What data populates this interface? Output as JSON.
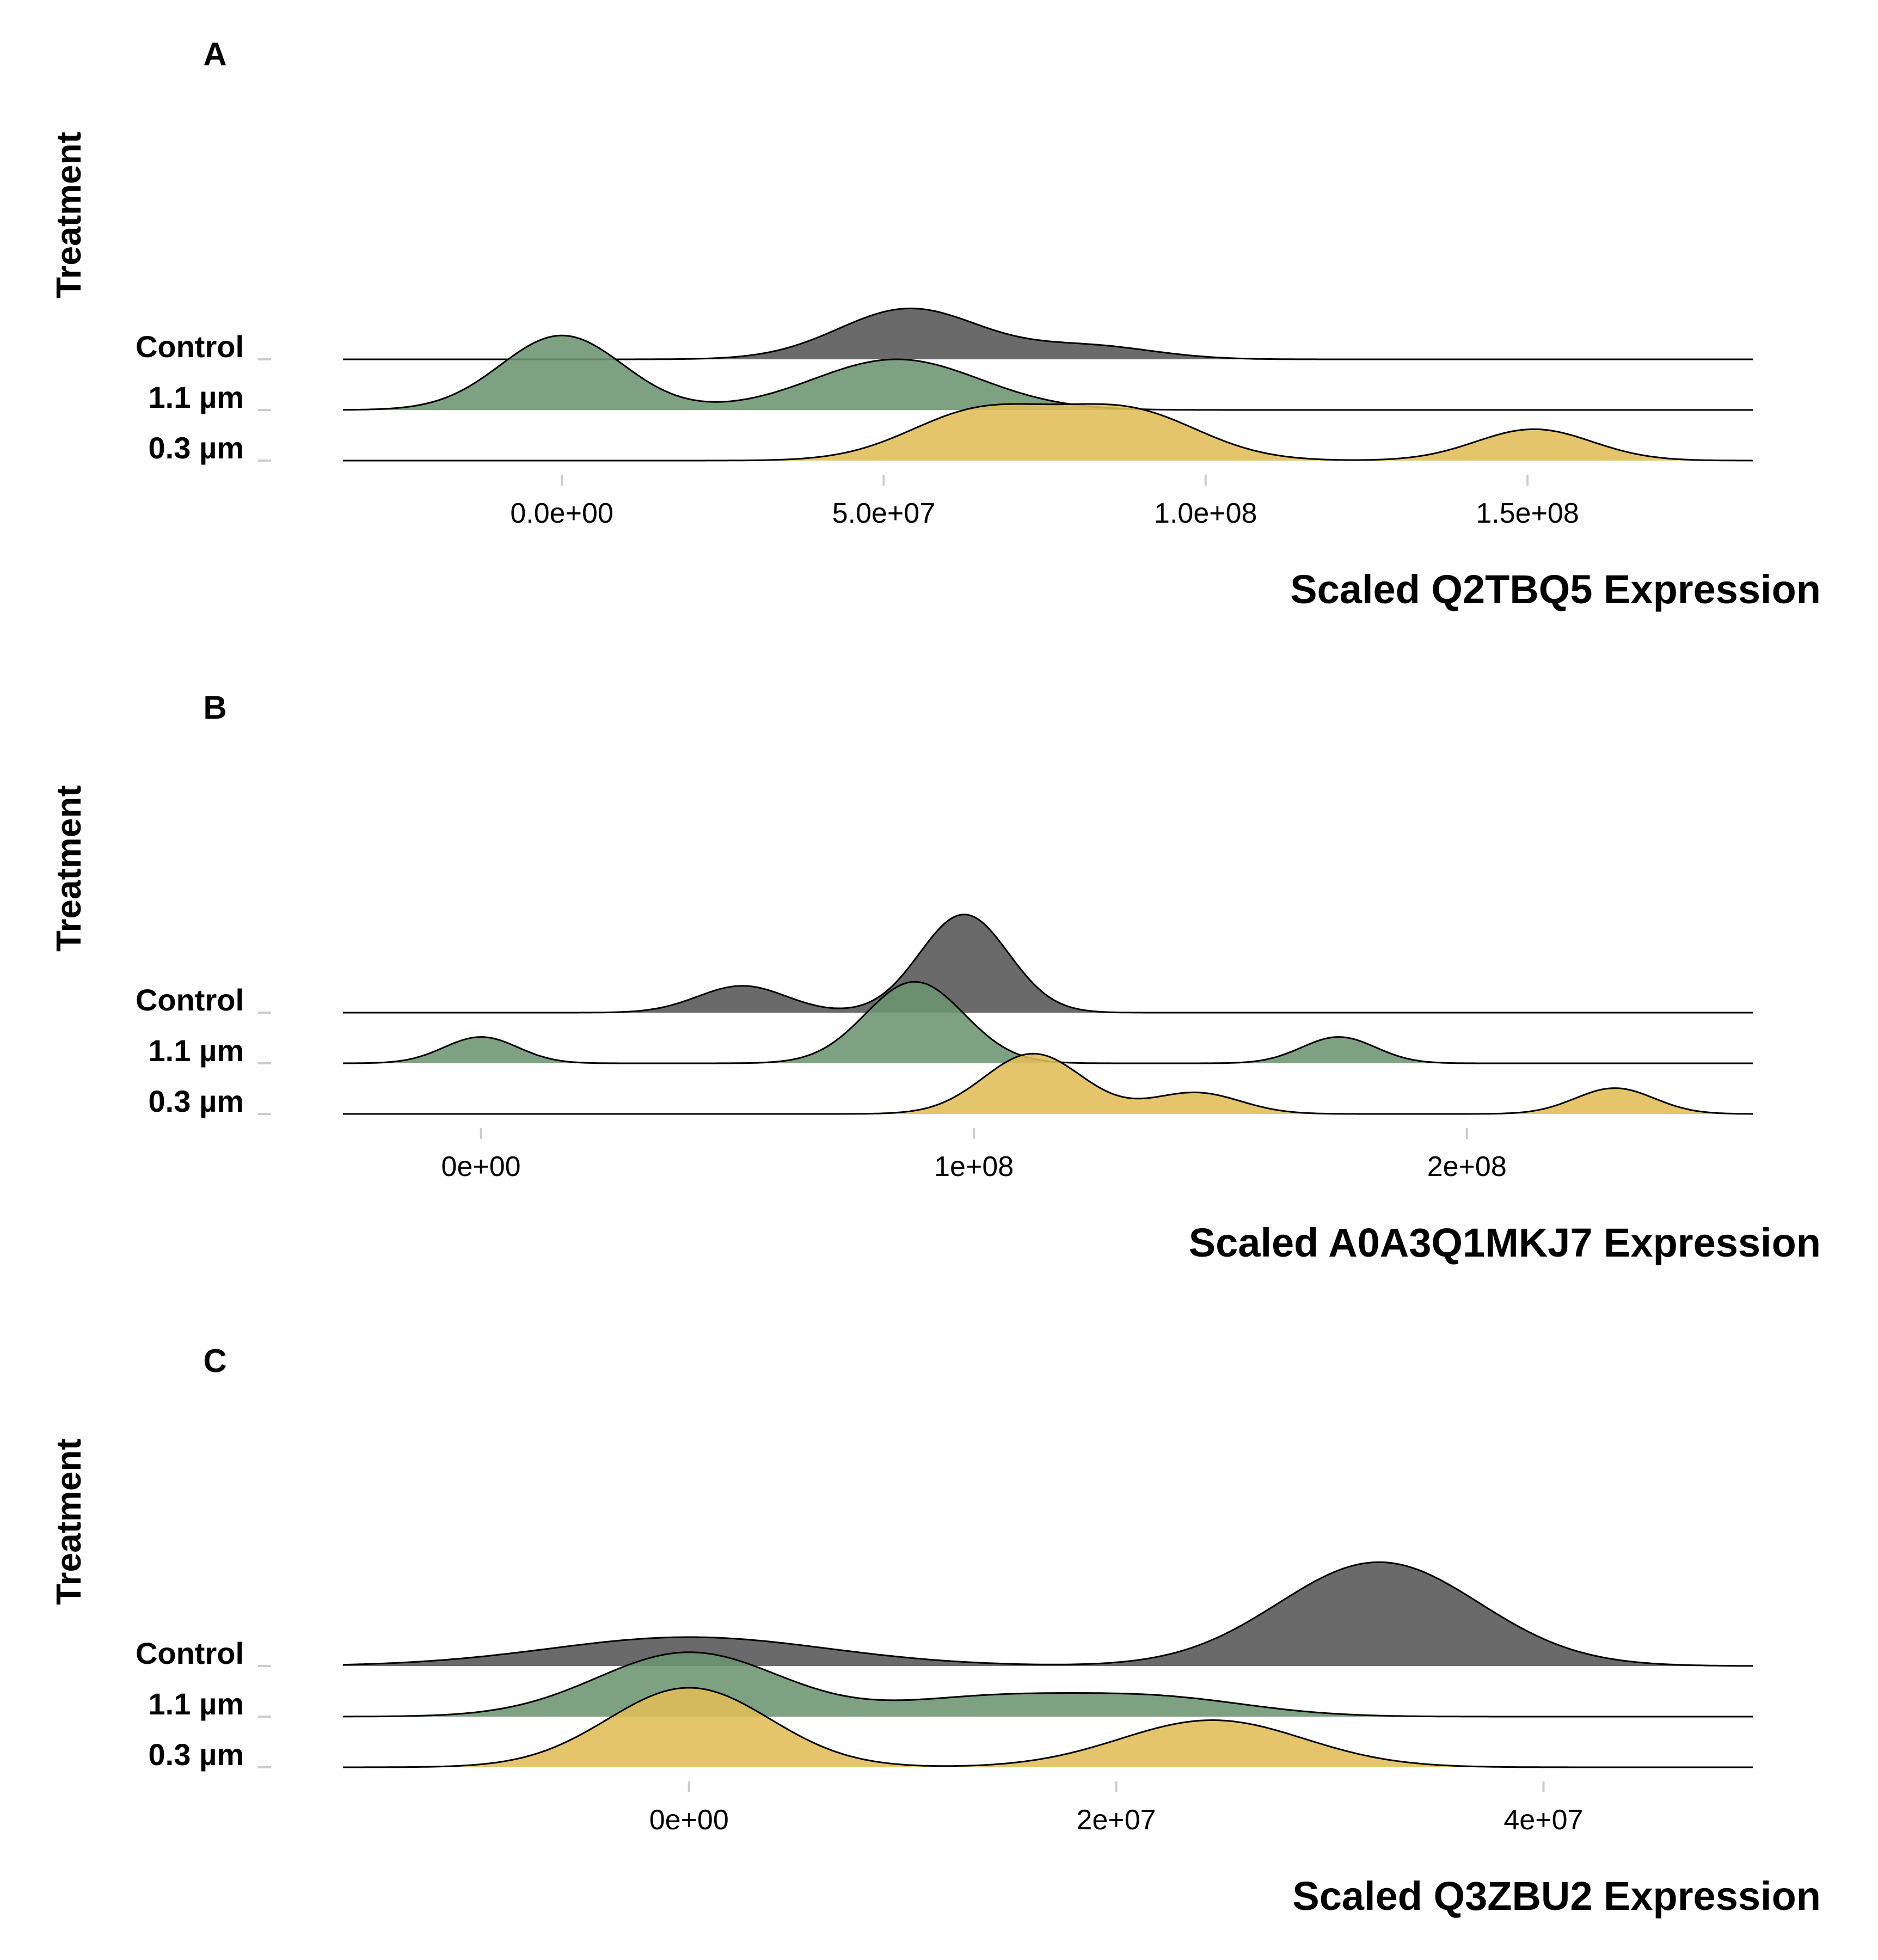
{
  "figure": {
    "colors": {
      "Control": "#555555",
      "1.1 µm": "#6b9470",
      "0.3 µm": "#e0bd57"
    },
    "fill_opacity": 0.88,
    "line_color": "#000000",
    "grid": false
  },
  "chart_data": [
    {
      "type": "ridgeline",
      "panel": "A",
      "ylabel": "Treatment",
      "xlabel": "Scaled Q2TBQ5 Expression",
      "categories": [
        "Control",
        "1.1 µm",
        "0.3 µm"
      ],
      "xlim": [
        -34000000,
        185000000
      ],
      "ticks": [
        {
          "value": 0,
          "label": "0.0e+00"
        },
        {
          "value": 50000000,
          "label": "5.0e+07"
        },
        {
          "value": 100000000,
          "label": "1.0e+08"
        },
        {
          "value": 150000000,
          "label": "1.5e+08"
        }
      ],
      "series": [
        {
          "name": "Control",
          "components": [
            {
              "mu": 54000000,
              "sigma": 11000000,
              "height": 1.0
            },
            {
              "mu": 82000000,
              "sigma": 10000000,
              "height": 0.26
            }
          ]
        },
        {
          "name": "1.1 µm",
          "components": [
            {
              "mu": 0,
              "sigma": 9500000,
              "height": 1.47
            },
            {
              "mu": 52000000,
              "sigma": 13000000,
              "height": 1.0
            }
          ]
        },
        {
          "name": "0.3 µm",
          "components": [
            {
              "mu": 65000000,
              "sigma": 11000000,
              "height": 0.96
            },
            {
              "mu": 88000000,
              "sigma": 11000000,
              "height": 0.96
            },
            {
              "mu": 151000000,
              "sigma": 9000000,
              "height": 0.62
            }
          ]
        }
      ]
    },
    {
      "type": "ridgeline",
      "panel": "B",
      "ylabel": "Treatment",
      "xlabel": "Scaled A0A3Q1MKJ7 Expression",
      "categories": [
        "Control",
        "1.1 µm",
        "0.3 µm"
      ],
      "xlim": [
        -28000000,
        258000000
      ],
      "ticks": [
        {
          "value": 0,
          "label": "0e+00"
        },
        {
          "value": 100000000,
          "label": "1e+08"
        },
        {
          "value": 200000000,
          "label": "2e+08"
        }
      ],
      "series": [
        {
          "name": "Control",
          "components": [
            {
              "mu": 53000000,
              "sigma": 9000000,
              "height": 0.53
            },
            {
              "mu": 98000000,
              "sigma": 9000000,
              "height": 1.94
            }
          ]
        },
        {
          "name": "1.1 µm",
          "components": [
            {
              "mu": 0,
              "sigma": 7500000,
              "height": 0.52
            },
            {
              "mu": 88000000,
              "sigma": 10000000,
              "height": 1.61
            },
            {
              "mu": 174000000,
              "sigma": 7500000,
              "height": 0.52
            }
          ]
        },
        {
          "name": "0.3 µm",
          "components": [
            {
              "mu": 112000000,
              "sigma": 10000000,
              "height": 1.19
            },
            {
              "mu": 145000000,
              "sigma": 9000000,
              "height": 0.42
            },
            {
              "mu": 230000000,
              "sigma": 8000000,
              "height": 0.51
            }
          ]
        }
      ]
    },
    {
      "type": "ridgeline",
      "panel": "C",
      "ylabel": "Treatment",
      "xlabel": "Scaled Q3ZBU2 Expression",
      "categories": [
        "Control",
        "1.1 µm",
        "0.3 µm"
      ],
      "xlim": [
        -16200000,
        49800000
      ],
      "ticks": [
        {
          "value": 0,
          "label": "0e+00"
        },
        {
          "value": 20000000,
          "label": "2e+07"
        },
        {
          "value": 40000000,
          "label": "4e+07"
        }
      ],
      "series": [
        {
          "name": "Control",
          "components": [
            {
              "mu": 0,
              "sigma": 6500000,
              "height": 0.57
            },
            {
              "mu": 32300000,
              "sigma": 4700000,
              "height": 2.05
            }
          ]
        },
        {
          "name": "1.1 µm",
          "components": [
            {
              "mu": 0,
              "sigma": 4300000,
              "height": 1.27
            },
            {
              "mu": 14000000,
              "sigma": 4300000,
              "height": 0.36
            },
            {
              "mu": 22000000,
              "sigma": 4300000,
              "height": 0.36
            }
          ]
        },
        {
          "name": "0.3 µm",
          "components": [
            {
              "mu": 0,
              "sigma": 3800000,
              "height": 1.57
            },
            {
              "mu": 24500000,
              "sigma": 4300000,
              "height": 0.93
            }
          ]
        }
      ]
    }
  ]
}
